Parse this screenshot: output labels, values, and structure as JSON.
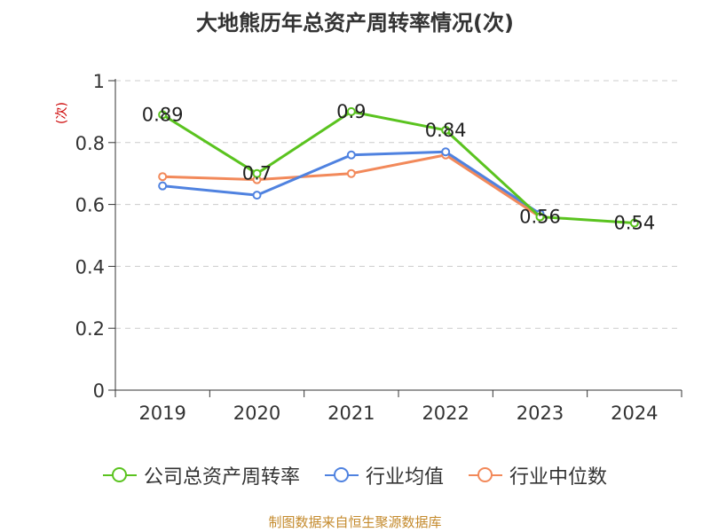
{
  "chart_data": {
    "type": "line",
    "title": "大地熊历年总资产周转率情况(次)",
    "ylabel": "(次)",
    "xlabel": "",
    "categories": [
      "2019",
      "2020",
      "2021",
      "2022",
      "2023",
      "2024"
    ],
    "ylim": [
      0,
      1
    ],
    "yticks": [
      "0",
      "0.2",
      "0.4",
      "0.6",
      "0.8",
      "1"
    ],
    "ytick_values": [
      0,
      0.2,
      0.4,
      0.6,
      0.8,
      1
    ],
    "grid": true,
    "legend_position": "bottom",
    "series": [
      {
        "name": "公司总资产周转率",
        "color": "#5ac31f",
        "values": [
          0.89,
          0.7,
          0.9,
          0.84,
          0.56,
          0.54
        ],
        "labels": [
          "0.89",
          "0.7",
          "0.9",
          "0.84",
          "0.56",
          "0.54"
        ]
      },
      {
        "name": "行业均值",
        "color": "#4f82e0",
        "values": [
          0.66,
          0.63,
          0.76,
          0.77,
          0.57,
          null
        ]
      },
      {
        "name": "行业中位数",
        "color": "#f2895a",
        "values": [
          0.69,
          0.68,
          0.7,
          0.76,
          0.56,
          null
        ]
      }
    ],
    "source": "制图数据来自恒生聚源数据库"
  }
}
